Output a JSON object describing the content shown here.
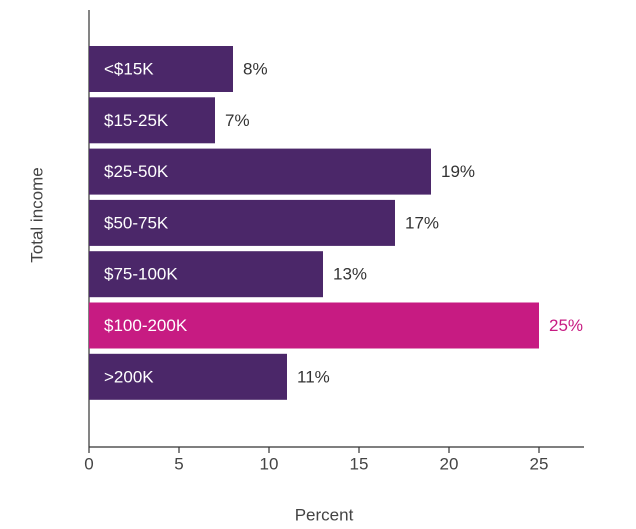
{
  "chart_data": {
    "type": "bar",
    "orientation": "horizontal",
    "x_label": "Percent",
    "y_label": "Total income",
    "categories": [
      "<$15K",
      "$15-25K",
      "$25-50K",
      "$50-75K",
      "$75-100K",
      "$100-200K",
      ">200K"
    ],
    "values": [
      8,
      7,
      19,
      17,
      13,
      25,
      11
    ],
    "value_labels": [
      "8%",
      "7%",
      "19%",
      "17%",
      "13%",
      "25%",
      "11%"
    ],
    "colors": [
      "#4b2769",
      "#4b2769",
      "#4b2769",
      "#4b2769",
      "#4b2769",
      "#c71b82",
      "#4b2769"
    ],
    "label_colors": [
      "#333333",
      "#333333",
      "#333333",
      "#333333",
      "#333333",
      "#c71b82",
      "#333333"
    ],
    "xlim": [
      0,
      27.5
    ],
    "xticks": [
      0,
      5,
      10,
      15,
      20,
      25
    ]
  }
}
